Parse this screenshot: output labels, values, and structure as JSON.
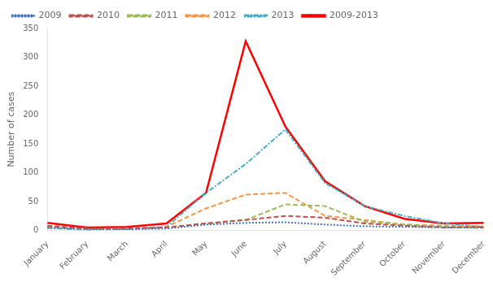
{
  "chart_data": {
    "type": "line",
    "categories": [
      "January",
      "February",
      "March",
      "April",
      "May",
      "June",
      "July",
      "August",
      "September",
      "October",
      "November",
      "December"
    ],
    "series": [
      {
        "name": "2009",
        "color": "#4472C4",
        "line_style": "dotted",
        "values": [
          5,
          2,
          2,
          3,
          10,
          13,
          14,
          10,
          7,
          6,
          5,
          5
        ]
      },
      {
        "name": "2010",
        "color": "#C0504D",
        "line_style": "dashed",
        "values": [
          8,
          3,
          3,
          5,
          12,
          18,
          25,
          22,
          12,
          8,
          5,
          6
        ]
      },
      {
        "name": "2011",
        "color": "#9BBB59",
        "line_style": "dashed",
        "values": [
          5,
          2,
          2,
          5,
          12,
          18,
          45,
          42,
          15,
          10,
          6,
          4
        ]
      },
      {
        "name": "2012",
        "color": "#F79646",
        "line_style": "dashed",
        "values": [
          6,
          2,
          3,
          6,
          38,
          62,
          65,
          25,
          18,
          10,
          8,
          7
        ]
      },
      {
        "name": "2013",
        "color": "#4BACC6",
        "line_style": "dashdot",
        "values": [
          4,
          1,
          2,
          6,
          65,
          115,
          175,
          82,
          42,
          25,
          12,
          6
        ]
      },
      {
        "name": "2009-2013",
        "color": "#FF0000",
        "line_style": "solid",
        "values": [
          13,
          5,
          6,
          12,
          65,
          328,
          180,
          85,
          42,
          20,
          12,
          13
        ]
      }
    ],
    "ylabel": "Number of cases",
    "ylim": [
      0,
      350
    ],
    "yticks": [
      0,
      50,
      100,
      150,
      200,
      250,
      300,
      350
    ],
    "grid": false,
    "legend": "upper left"
  }
}
